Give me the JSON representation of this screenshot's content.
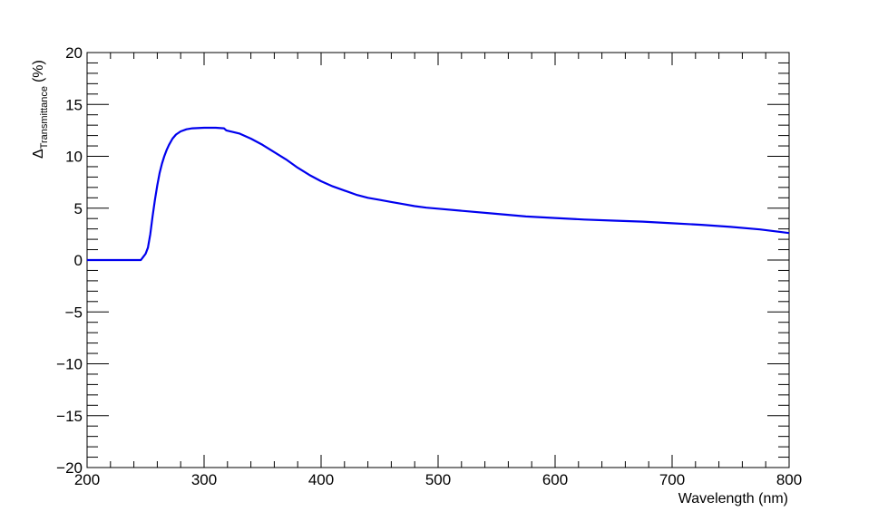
{
  "chart_data": {
    "type": "line",
    "xlabel": "Wavelength (nm)",
    "ylabel": {
      "symbol": "Δ",
      "subscript": "Transmittance",
      "unit": "(%)"
    },
    "xlim": [
      200,
      800
    ],
    "ylim": [
      -20,
      20
    ],
    "x_ticks": [
      "200",
      "300",
      "400",
      "500",
      "600",
      "700",
      "800"
    ],
    "y_ticks": [
      "−20",
      "−15",
      "−10",
      "−5",
      "0",
      "5",
      "10",
      "15",
      "20"
    ],
    "grid": false,
    "series": [
      {
        "color": "#0000ee",
        "x": [
          200,
          240,
          246,
          248,
          250,
          252,
          254,
          256,
          258,
          260,
          262,
          264,
          266,
          268,
          270,
          273,
          276,
          280,
          285,
          290,
          300,
          310,
          317,
          319,
          330,
          340,
          350,
          360,
          370,
          380,
          390,
          400,
          410,
          420,
          430,
          440,
          450,
          460,
          470,
          480,
          490,
          500,
          525,
          550,
          575,
          600,
          625,
          650,
          675,
          700,
          725,
          750,
          775,
          800
        ],
        "y": [
          0,
          0,
          0,
          0.3,
          0.6,
          1.2,
          2.5,
          4.2,
          5.8,
          7.2,
          8.4,
          9.3,
          10.0,
          10.6,
          11.1,
          11.7,
          12.1,
          12.4,
          12.6,
          12.7,
          12.75,
          12.75,
          12.7,
          12.5,
          12.2,
          11.7,
          11.1,
          10.4,
          9.7,
          8.9,
          8.2,
          7.6,
          7.1,
          6.7,
          6.3,
          6.0,
          5.8,
          5.6,
          5.4,
          5.2,
          5.05,
          4.95,
          4.7,
          4.45,
          4.2,
          4.05,
          3.9,
          3.8,
          3.7,
          3.55,
          3.4,
          3.2,
          2.95,
          2.6
        ]
      }
    ]
  }
}
